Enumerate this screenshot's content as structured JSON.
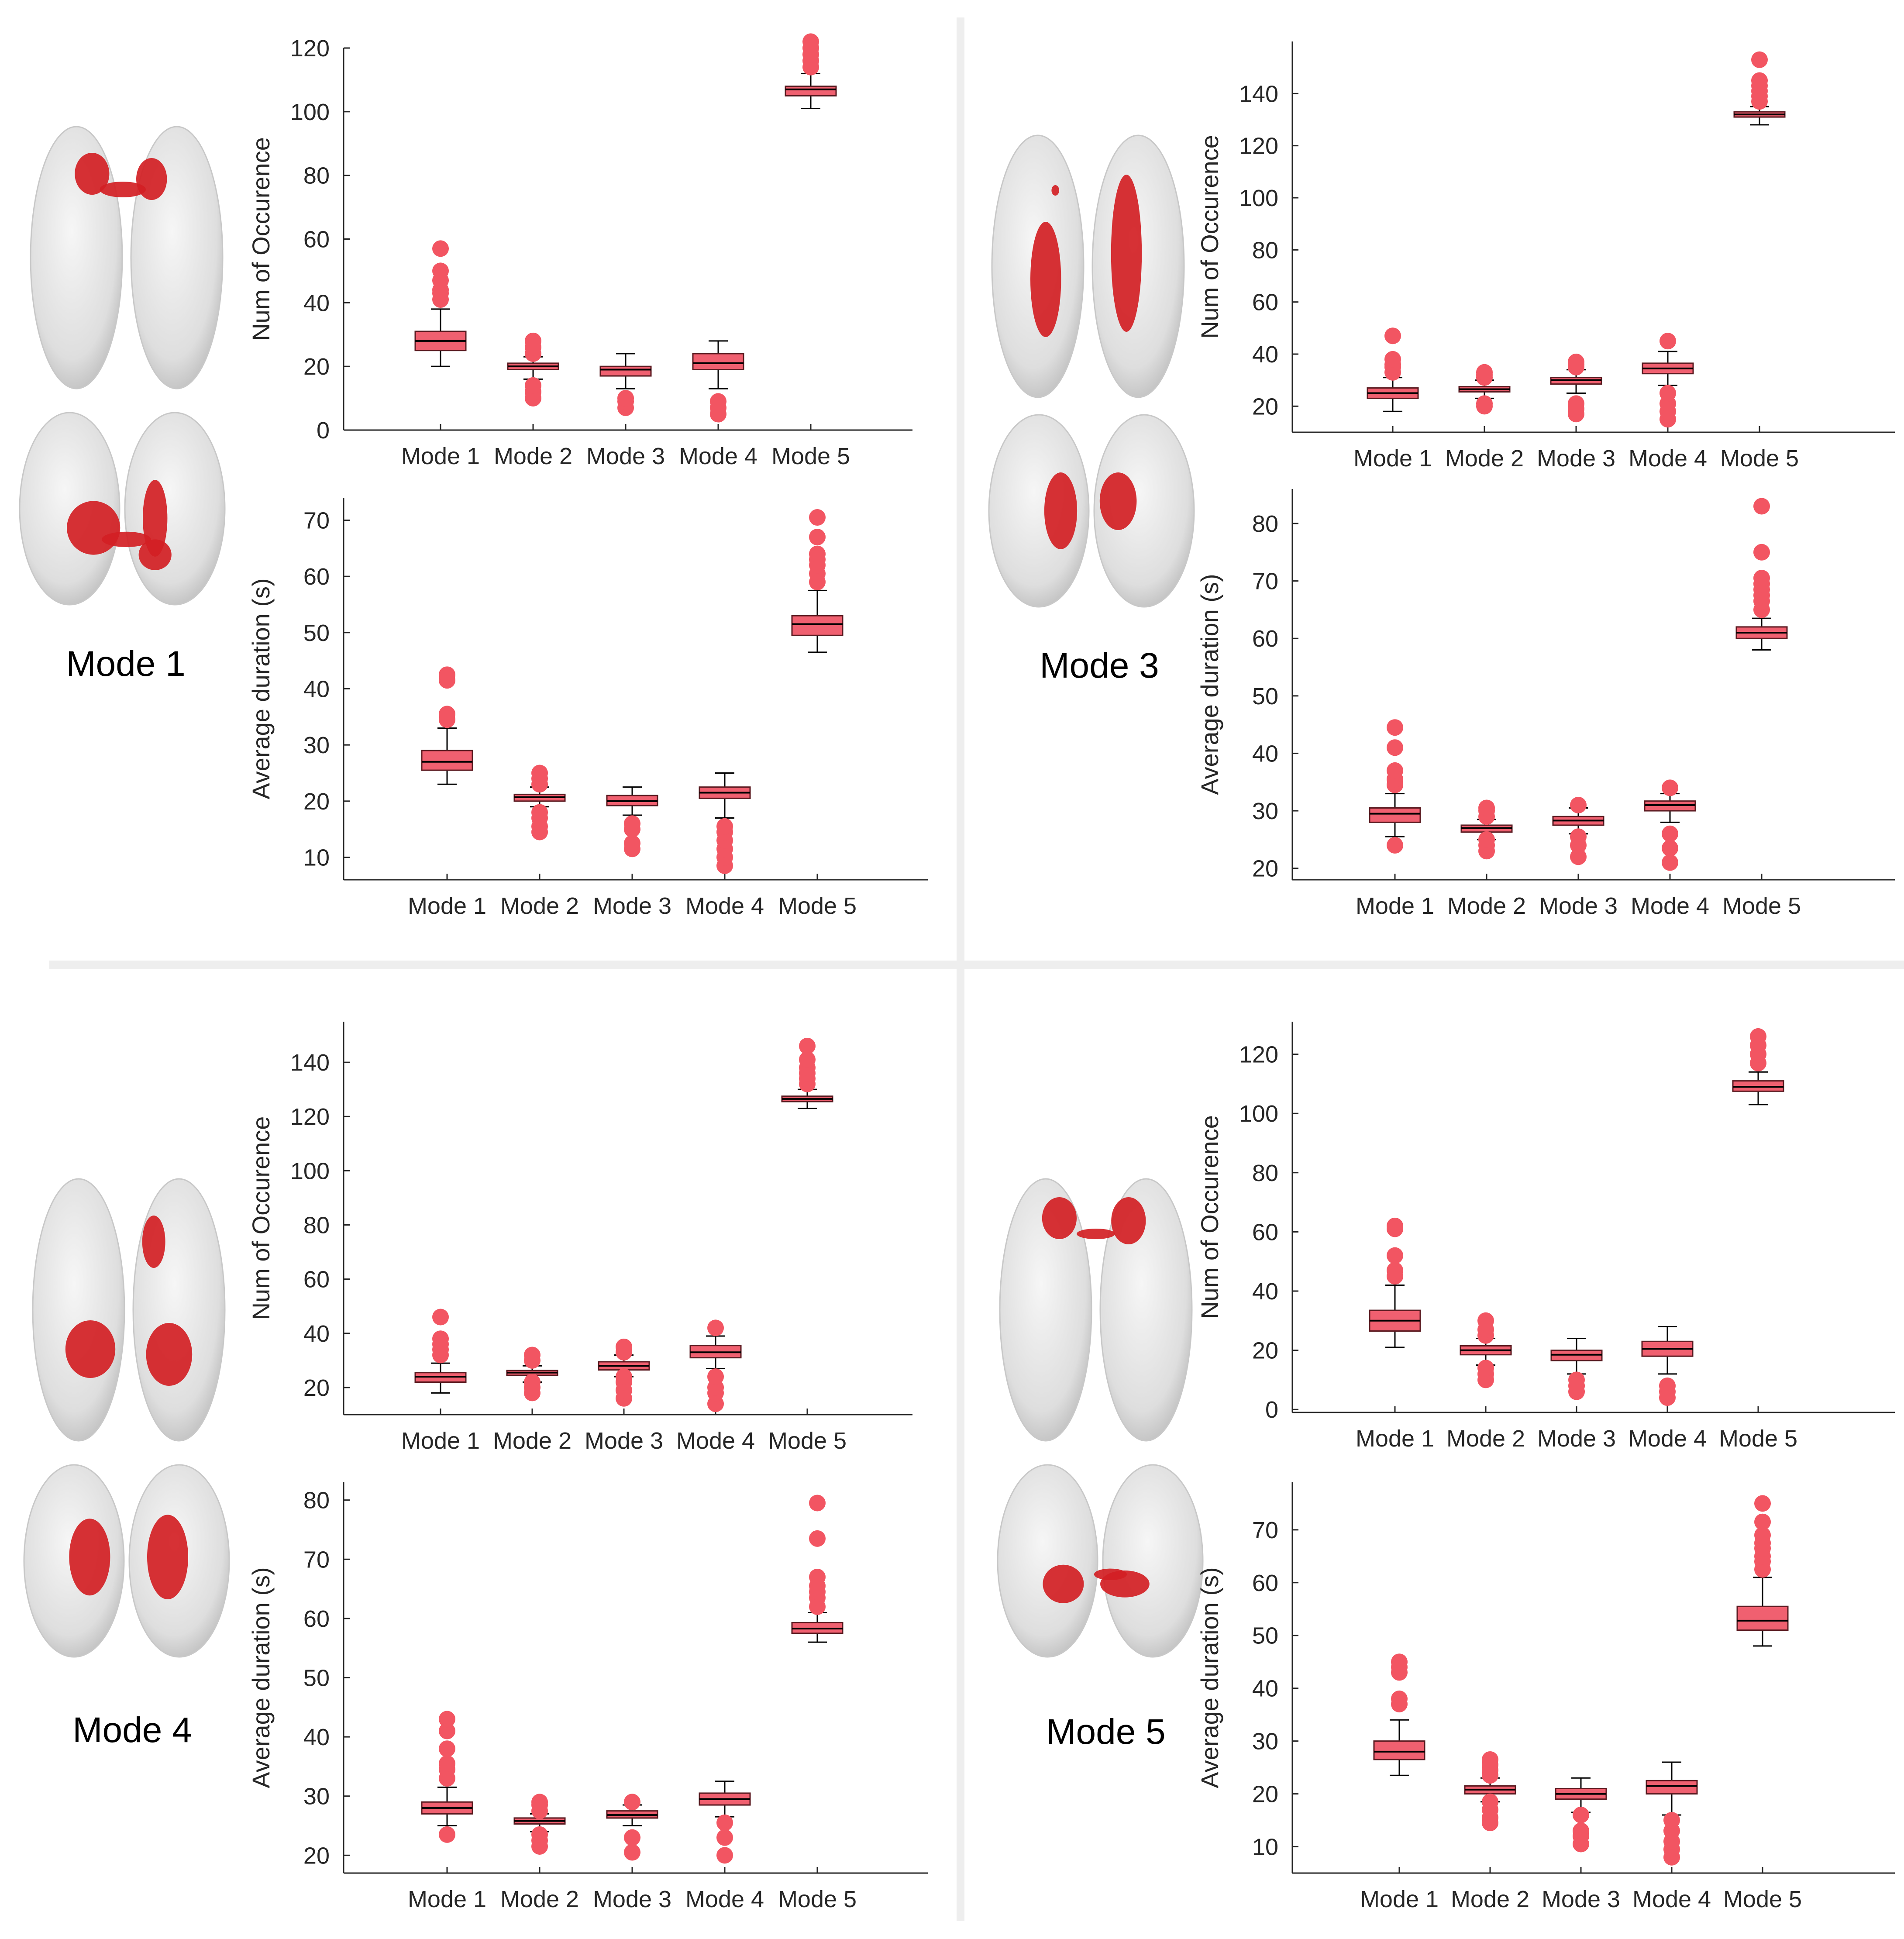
{
  "panels": [
    {
      "label": "Mode 1",
      "brain": "mode-1"
    },
    {
      "label": "Mode 3",
      "brain": "mode-3"
    },
    {
      "label": "Mode 4",
      "brain": "mode-4"
    },
    {
      "label": "Mode 5",
      "brain": "mode-5"
    }
  ],
  "colors": {
    "box": "#f06070",
    "outlier": "#f25562",
    "brain": "#d21f24",
    "axis": "#262626"
  },
  "chart_data": [
    {
      "type": "box",
      "panel": "Mode 1",
      "metric": "occurrence",
      "ylabel": "Num of Occurence",
      "ylim": [
        0,
        120
      ],
      "yticks": [
        0,
        20,
        40,
        60,
        80,
        100,
        120
      ],
      "categories": [
        "Mode 1",
        "Mode 2",
        "Mode 3",
        "Mode 4",
        "Mode 5"
      ],
      "boxes": [
        {
          "whisker_low": 20,
          "q1": 25,
          "median": 28,
          "q3": 31,
          "whisker_high": 38,
          "outliers": [
            41,
            43,
            44,
            47,
            50,
            57
          ]
        },
        {
          "whisker_low": 16,
          "q1": 19,
          "median": 20,
          "q3": 21,
          "whisker_high": 23,
          "outliers": [
            10,
            12,
            14,
            24,
            26,
            28
          ]
        },
        {
          "whisker_low": 13,
          "q1": 17,
          "median": 19,
          "q3": 20,
          "whisker_high": 24,
          "outliers": [
            7,
            9,
            10
          ]
        },
        {
          "whisker_low": 13,
          "q1": 19,
          "median": 21,
          "q3": 24,
          "whisker_high": 28,
          "outliers": [
            5,
            7,
            9
          ]
        },
        {
          "whisker_low": 101,
          "q1": 105,
          "median": 107,
          "q3": 108,
          "whisker_high": 112,
          "outliers": [
            114,
            116,
            118,
            120,
            122
          ]
        }
      ]
    },
    {
      "type": "box",
      "panel": "Mode 1",
      "metric": "duration",
      "ylabel": "Average duration (s)",
      "ylim": [
        6,
        74
      ],
      "yticks": [
        10,
        20,
        30,
        40,
        50,
        60,
        70
      ],
      "categories": [
        "Mode 1",
        "Mode 2",
        "Mode 3",
        "Mode 4",
        "Mode 5"
      ],
      "boxes": [
        {
          "whisker_low": 23,
          "q1": 25.5,
          "median": 27,
          "q3": 29,
          "whisker_high": 33,
          "outliers": [
            34.5,
            35.5,
            41.5,
            42.5
          ]
        },
        {
          "whisker_low": 19,
          "q1": 20,
          "median": 20.7,
          "q3": 21.2,
          "whisker_high": 22.5,
          "outliers": [
            14.5,
            15.5,
            17,
            18,
            23,
            24,
            25
          ]
        },
        {
          "whisker_low": 17.5,
          "q1": 19.2,
          "median": 20,
          "q3": 21,
          "whisker_high": 22.5,
          "outliers": [
            11.5,
            12.5,
            15,
            16
          ]
        },
        {
          "whisker_low": 17,
          "q1": 20.5,
          "median": 21.5,
          "q3": 22.5,
          "whisker_high": 25,
          "outliers": [
            8.5,
            10,
            11.5,
            13,
            14.5,
            15.5
          ]
        },
        {
          "whisker_low": 46.5,
          "q1": 49.5,
          "median": 51.5,
          "q3": 53,
          "whisker_high": 57.5,
          "outliers": [
            59,
            60.5,
            62,
            63,
            64,
            67,
            70.5
          ]
        }
      ]
    },
    {
      "type": "box",
      "panel": "Mode 3",
      "metric": "occurrence",
      "ylabel": "Num of Occurence",
      "ylim": [
        10,
        160
      ],
      "yticks": [
        20,
        40,
        60,
        80,
        100,
        120,
        140
      ],
      "categories": [
        "Mode 1",
        "Mode 2",
        "Mode 3",
        "Mode 4",
        "Mode 5"
      ],
      "boxes": [
        {
          "whisker_low": 18,
          "q1": 23,
          "median": 25,
          "q3": 27,
          "whisker_high": 31,
          "outliers": [
            33,
            35,
            36,
            38,
            47
          ]
        },
        {
          "whisker_low": 23,
          "q1": 25.5,
          "median": 26.5,
          "q3": 27.5,
          "whisker_high": 30,
          "outliers": [
            20,
            21,
            31,
            32,
            33
          ]
        },
        {
          "whisker_low": 25,
          "q1": 28.5,
          "median": 30,
          "q3": 31,
          "whisker_high": 34,
          "outliers": [
            17,
            19,
            21,
            35,
            36,
            37
          ]
        },
        {
          "whisker_low": 28,
          "q1": 32.5,
          "median": 34.5,
          "q3": 36.5,
          "whisker_high": 41,
          "outliers": [
            15,
            18,
            21,
            25,
            45
          ]
        },
        {
          "whisker_low": 128,
          "q1": 131,
          "median": 132,
          "q3": 133,
          "whisker_high": 135,
          "outliers": [
            137,
            139,
            141,
            143,
            145,
            153
          ]
        }
      ]
    },
    {
      "type": "box",
      "panel": "Mode 3",
      "metric": "duration",
      "ylabel": "Average duration (s)",
      "ylim": [
        18,
        86
      ],
      "yticks": [
        20,
        30,
        40,
        50,
        60,
        70,
        80
      ],
      "categories": [
        "Mode 1",
        "Mode 2",
        "Mode 3",
        "Mode 4",
        "Mode 5"
      ],
      "boxes": [
        {
          "whisker_low": 25.5,
          "q1": 28,
          "median": 29.5,
          "q3": 30.5,
          "whisker_high": 33,
          "outliers": [
            24,
            34.5,
            35.5,
            37,
            41,
            44.5
          ]
        },
        {
          "whisker_low": 25,
          "q1": 26.3,
          "median": 27,
          "q3": 27.5,
          "whisker_high": 28.5,
          "outliers": [
            23,
            24,
            25,
            29,
            30,
            30.5
          ]
        },
        {
          "whisker_low": 26,
          "q1": 27.5,
          "median": 28.3,
          "q3": 29,
          "whisker_high": 30.5,
          "outliers": [
            22,
            24,
            25.5,
            31
          ]
        },
        {
          "whisker_low": 28,
          "q1": 30,
          "median": 31,
          "q3": 31.7,
          "whisker_high": 33,
          "outliers": [
            21,
            23.5,
            26,
            34
          ]
        },
        {
          "whisker_low": 58,
          "q1": 60,
          "median": 61,
          "q3": 62,
          "whisker_high": 63.5,
          "outliers": [
            65,
            66.5,
            67.5,
            68.5,
            69.5,
            70.5,
            75,
            83
          ]
        }
      ]
    },
    {
      "type": "box",
      "panel": "Mode 4",
      "metric": "occurrence",
      "ylabel": "Num of Occurence",
      "ylim": [
        10,
        155
      ],
      "yticks": [
        20,
        40,
        60,
        80,
        100,
        120,
        140
      ],
      "categories": [
        "Mode 1",
        "Mode 2",
        "Mode 3",
        "Mode 4",
        "Mode 5"
      ],
      "boxes": [
        {
          "whisker_low": 18,
          "q1": 22,
          "median": 24,
          "q3": 25.5,
          "whisker_high": 29,
          "outliers": [
            32,
            34,
            36,
            38,
            46
          ]
        },
        {
          "whisker_low": 22,
          "q1": 24.5,
          "median": 25.5,
          "q3": 26.3,
          "whisker_high": 28,
          "outliers": [
            18,
            20,
            22,
            30,
            32
          ]
        },
        {
          "whisker_low": 24,
          "q1": 26.5,
          "median": 28,
          "q3": 29.5,
          "whisker_high": 32,
          "outliers": [
            16,
            19,
            22,
            24,
            33,
            35
          ]
        },
        {
          "whisker_low": 27,
          "q1": 31,
          "median": 33,
          "q3": 35.5,
          "whisker_high": 39,
          "outliers": [
            14,
            18,
            20,
            24,
            42
          ]
        },
        {
          "whisker_low": 123,
          "q1": 125.5,
          "median": 126.5,
          "q3": 127.5,
          "whisker_high": 130,
          "outliers": [
            132,
            134,
            136,
            138,
            141,
            146
          ]
        }
      ]
    },
    {
      "type": "box",
      "panel": "Mode 4",
      "metric": "duration",
      "ylabel": "Average duration (s)",
      "ylim": [
        17,
        83
      ],
      "yticks": [
        20,
        30,
        40,
        50,
        60,
        70,
        80
      ],
      "categories": [
        "Mode 1",
        "Mode 2",
        "Mode 3",
        "Mode 4",
        "Mode 5"
      ],
      "boxes": [
        {
          "whisker_low": 25,
          "q1": 27,
          "median": 28,
          "q3": 29,
          "whisker_high": 31.5,
          "outliers": [
            23.5,
            33,
            34.5,
            35.5,
            38,
            41,
            43
          ]
        },
        {
          "whisker_low": 24,
          "q1": 25.3,
          "median": 25.8,
          "q3": 26.3,
          "whisker_high": 27,
          "outliers": [
            21.5,
            22.5,
            23.5,
            27.5,
            28.5,
            29
          ]
        },
        {
          "whisker_low": 25,
          "q1": 26.3,
          "median": 26.8,
          "q3": 27.5,
          "whisker_high": 28.5,
          "outliers": [
            20.5,
            23,
            29
          ]
        },
        {
          "whisker_low": 26.5,
          "q1": 28.5,
          "median": 29.5,
          "q3": 30.5,
          "whisker_high": 32.5,
          "outliers": [
            20,
            23,
            25.5
          ]
        },
        {
          "whisker_low": 56,
          "q1": 57.5,
          "median": 58.3,
          "q3": 59.3,
          "whisker_high": 61,
          "outliers": [
            62,
            63.5,
            64.5,
            65.5,
            67,
            73.5,
            79.5
          ]
        }
      ]
    },
    {
      "type": "box",
      "panel": "Mode 5",
      "metric": "occurrence",
      "ylabel": "Num of Occurence",
      "ylim": [
        -1,
        131
      ],
      "yticks": [
        0,
        20,
        40,
        60,
        80,
        100,
        120
      ],
      "categories": [
        "Mode 1",
        "Mode 2",
        "Mode 3",
        "Mode 4",
        "Mode 5"
      ],
      "boxes": [
        {
          "whisker_low": 21,
          "q1": 26.5,
          "median": 30,
          "q3": 33.5,
          "whisker_high": 42,
          "outliers": [
            45,
            47,
            52,
            61,
            62
          ]
        },
        {
          "whisker_low": 15,
          "q1": 18.5,
          "median": 20,
          "q3": 21.5,
          "whisker_high": 24,
          "outliers": [
            10,
            12,
            14,
            25,
            27,
            30
          ]
        },
        {
          "whisker_low": 12,
          "q1": 16.5,
          "median": 18.5,
          "q3": 20,
          "whisker_high": 24,
          "outliers": [
            6,
            8,
            10
          ]
        },
        {
          "whisker_low": 12,
          "q1": 18,
          "median": 20.5,
          "q3": 23,
          "whisker_high": 28,
          "outliers": [
            4,
            6,
            8
          ]
        },
        {
          "whisker_low": 103,
          "q1": 107.5,
          "median": 109,
          "q3": 111,
          "whisker_high": 114,
          "outliers": [
            117,
            120,
            123,
            126
          ]
        }
      ]
    },
    {
      "type": "box",
      "panel": "Mode 5",
      "metric": "duration",
      "ylabel": "Average duration (s)",
      "ylim": [
        5,
        79
      ],
      "yticks": [
        10,
        20,
        30,
        40,
        50,
        60,
        70
      ],
      "categories": [
        "Mode 1",
        "Mode 2",
        "Mode 3",
        "Mode 4",
        "Mode 5"
      ],
      "boxes": [
        {
          "whisker_low": 23.5,
          "q1": 26.5,
          "median": 28,
          "q3": 30,
          "whisker_high": 34,
          "outliers": [
            37,
            38,
            43,
            44,
            45
          ]
        },
        {
          "whisker_low": 18.5,
          "q1": 20,
          "median": 20.8,
          "q3": 21.5,
          "whisker_high": 23,
          "outliers": [
            14.5,
            15.5,
            17,
            18.5,
            23.5,
            24.5,
            25.5,
            26.5
          ]
        },
        {
          "whisker_low": 16.5,
          "q1": 19,
          "median": 20,
          "q3": 21,
          "whisker_high": 23,
          "outliers": [
            10.5,
            12,
            13,
            16
          ]
        },
        {
          "whisker_low": 16,
          "q1": 20,
          "median": 21.5,
          "q3": 22.5,
          "whisker_high": 26,
          "outliers": [
            8,
            9.5,
            11,
            13,
            15
          ]
        },
        {
          "whisker_low": 48,
          "q1": 51,
          "median": 52.8,
          "q3": 55.5,
          "whisker_high": 61,
          "outliers": [
            62.5,
            64,
            65,
            66.5,
            67.5,
            69,
            71.5,
            75
          ]
        }
      ]
    }
  ]
}
